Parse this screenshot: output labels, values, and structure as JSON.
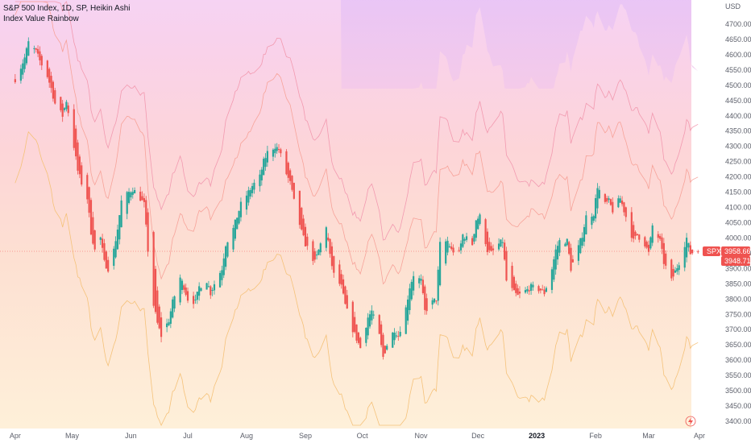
{
  "header": {
    "title": "S&P 500 Index, 1D, SP, Heikin Ashi",
    "indicator": "Index Value Rainbow"
  },
  "axis": {
    "currency": "USD",
    "symbol_tag": "SPX",
    "last_price": "3958.66",
    "prev_price": "3948.71"
  },
  "colors": {
    "up": "#26a69a",
    "down": "#ef5350",
    "tag": "#ef5350"
  },
  "icons": {
    "bottom_right": "lightning-icon"
  },
  "chart_data": {
    "type": "candlestick",
    "title": "S&P 500 Index, 1D, SP, Heikin Ashi",
    "ylim": [
      3380,
      4760
    ],
    "y_ticks": [
      4700,
      4650,
      4600,
      4550,
      4500,
      4450,
      4400,
      4350,
      4300,
      4250,
      4200,
      4150,
      4100,
      4050,
      4000,
      3950,
      3900,
      3850,
      3800,
      3750,
      3700,
      3650,
      3600,
      3550,
      3500,
      3450,
      3400
    ],
    "x_labels": [
      "Apr",
      "May",
      "Jun",
      "Jul",
      "Aug",
      "Sep",
      "Oct",
      "Nov",
      "Dec",
      "2023",
      "Feb",
      "Mar",
      "Apr"
    ],
    "close_path": [
      [
        "2022-04-01",
        4520
      ],
      [
        "2022-04-04",
        4560
      ],
      [
        "2022-04-06",
        4590
      ],
      [
        "2022-04-08",
        4640
      ],
      [
        "2022-04-12",
        4610
      ],
      [
        "2022-04-14",
        4580
      ],
      [
        "2022-04-18",
        4530
      ],
      [
        "2022-04-20",
        4490
      ],
      [
        "2022-04-22",
        4440
      ],
      [
        "2022-04-26",
        4400
      ],
      [
        "2022-04-28",
        4450
      ],
      [
        "2022-05-02",
        4300
      ],
      [
        "2022-05-04",
        4220
      ],
      [
        "2022-05-06",
        4180
      ],
      [
        "2022-05-09",
        4130
      ],
      [
        "2022-05-11",
        4020
      ],
      [
        "2022-05-13",
        3960
      ],
      [
        "2022-05-16",
        4000
      ],
      [
        "2022-05-18",
        3920
      ],
      [
        "2022-05-20",
        3900
      ],
      [
        "2022-05-23",
        3960
      ],
      [
        "2022-05-25",
        4030
      ],
      [
        "2022-05-27",
        4120
      ],
      [
        "2022-05-31",
        4150
      ],
      [
        "2022-06-02",
        4160
      ],
      [
        "2022-06-06",
        4130
      ],
      [
        "2022-06-08",
        4110
      ],
      [
        "2022-06-10",
        3960
      ],
      [
        "2022-06-13",
        3780
      ],
      [
        "2022-06-15",
        3720
      ],
      [
        "2022-06-17",
        3680
      ],
      [
        "2022-06-21",
        3730
      ],
      [
        "2022-06-23",
        3790
      ],
      [
        "2022-06-27",
        3870
      ],
      [
        "2022-06-29",
        3840
      ],
      [
        "2022-07-01",
        3800
      ],
      [
        "2022-07-05",
        3790
      ],
      [
        "2022-07-07",
        3840
      ],
      [
        "2022-07-11",
        3860
      ],
      [
        "2022-07-13",
        3820
      ],
      [
        "2022-07-15",
        3850
      ],
      [
        "2022-07-19",
        3900
      ],
      [
        "2022-07-21",
        3980
      ],
      [
        "2022-07-25",
        4030
      ],
      [
        "2022-07-27",
        4070
      ],
      [
        "2022-07-29",
        4110
      ],
      [
        "2022-08-02",
        4150
      ],
      [
        "2022-08-04",
        4170
      ],
      [
        "2022-08-08",
        4200
      ],
      [
        "2022-08-10",
        4250
      ],
      [
        "2022-08-12",
        4280
      ],
      [
        "2022-08-16",
        4300
      ],
      [
        "2022-08-18",
        4290
      ],
      [
        "2022-08-22",
        4210
      ],
      [
        "2022-08-24",
        4180
      ],
      [
        "2022-08-26",
        4120
      ],
      [
        "2022-08-30",
        4020
      ],
      [
        "2022-09-01",
        3980
      ],
      [
        "2022-09-06",
        3920
      ],
      [
        "2022-09-08",
        3960
      ],
      [
        "2022-09-12",
        4040
      ],
      [
        "2022-09-14",
        3940
      ],
      [
        "2022-09-16",
        3880
      ],
      [
        "2022-09-20",
        3840
      ],
      [
        "2022-09-22",
        3780
      ],
      [
        "2022-09-26",
        3700
      ],
      [
        "2022-09-28",
        3670
      ],
      [
        "2022-09-30",
        3640
      ],
      [
        "2022-10-04",
        3740
      ],
      [
        "2022-10-06",
        3760
      ],
      [
        "2022-10-10",
        3680
      ],
      [
        "2022-10-12",
        3610
      ],
      [
        "2022-10-14",
        3650
      ],
      [
        "2022-10-18",
        3700
      ],
      [
        "2022-10-20",
        3680
      ],
      [
        "2022-10-24",
        3770
      ],
      [
        "2022-10-26",
        3840
      ],
      [
        "2022-10-28",
        3880
      ],
      [
        "2022-11-01",
        3860
      ],
      [
        "2022-11-03",
        3760
      ],
      [
        "2022-11-07",
        3790
      ],
      [
        "2022-11-09",
        3800
      ],
      [
        "2022-11-11",
        3980
      ],
      [
        "2022-11-15",
        3990
      ],
      [
        "2022-11-17",
        3960
      ],
      [
        "2022-11-21",
        3950
      ],
      [
        "2022-11-23",
        4010
      ],
      [
        "2022-11-28",
        3980
      ],
      [
        "2022-11-30",
        4060
      ],
      [
        "2022-12-02",
        4070
      ],
      [
        "2022-12-06",
        3960
      ],
      [
        "2022-12-08",
        3950
      ],
      [
        "2022-12-12",
        3980
      ],
      [
        "2022-12-14",
        3990
      ],
      [
        "2022-12-16",
        3860
      ],
      [
        "2022-12-20",
        3820
      ],
      [
        "2022-12-22",
        3810
      ],
      [
        "2022-12-27",
        3830
      ],
      [
        "2022-12-29",
        3840
      ],
      [
        "2023-01-03",
        3830
      ],
      [
        "2023-01-05",
        3820
      ],
      [
        "2023-01-09",
        3900
      ],
      [
        "2023-01-11",
        3960
      ],
      [
        "2023-01-13",
        3990
      ],
      [
        "2023-01-17",
        3990
      ],
      [
        "2023-01-19",
        3900
      ],
      [
        "2023-01-23",
        3970
      ],
      [
        "2023-01-25",
        4010
      ],
      [
        "2023-01-27",
        4070
      ],
      [
        "2023-01-31",
        4080
      ],
      [
        "2023-02-02",
        4170
      ],
      [
        "2023-02-06",
        4110
      ],
      [
        "2023-02-08",
        4120
      ],
      [
        "2023-02-10",
        4090
      ],
      [
        "2023-02-14",
        4130
      ],
      [
        "2023-02-16",
        4090
      ],
      [
        "2023-02-21",
        3990
      ],
      [
        "2023-02-23",
        4010
      ],
      [
        "2023-02-27",
        3980
      ],
      [
        "2023-03-01",
        3950
      ],
      [
        "2023-03-03",
        4040
      ],
      [
        "2023-03-07",
        3990
      ],
      [
        "2023-03-09",
        3920
      ],
      [
        "2023-03-13",
        3860
      ],
      [
        "2023-03-15",
        3890
      ],
      [
        "2023-03-17",
        3920
      ],
      [
        "2023-03-21",
        4000
      ],
      [
        "2023-03-23",
        3950
      ],
      [
        "2023-03-27",
        3958
      ]
    ]
  }
}
